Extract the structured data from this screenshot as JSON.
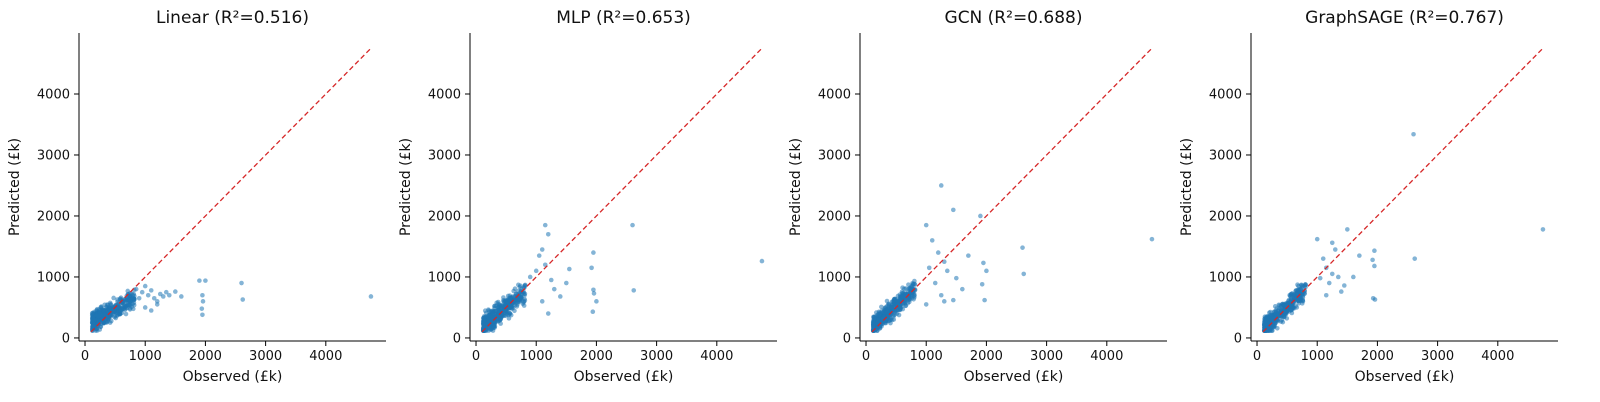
{
  "chart_data": [
    {
      "type": "scatter",
      "title": "Linear (R²=0.516)",
      "xlabel": "Observed (£k)",
      "ylabel": "Predicted (£k)",
      "xlim": [
        -100,
        5000
      ],
      "ylim": [
        -50,
        5000
      ],
      "xticks": [
        0,
        1000,
        2000,
        3000,
        4000
      ],
      "yticks": [
        0,
        1000,
        2000,
        3000,
        4000
      ],
      "xtick_labels": [
        "0",
        "1000",
        "2000",
        "3000",
        "4000"
      ],
      "ytick_labels": [
        "0",
        "1000",
        "2000",
        "3000",
        "4000"
      ],
      "reference_line": [
        100,
        4750
      ],
      "cluster": {
        "slope": 0.55,
        "intercept": 200
      },
      "points": [
        [
          800,
          700
        ],
        [
          850,
          800
        ],
        [
          900,
          650
        ],
        [
          950,
          750
        ],
        [
          1000,
          850
        ],
        [
          1050,
          700
        ],
        [
          1100,
          780
        ],
        [
          1150,
          650
        ],
        [
          1200,
          600
        ],
        [
          1250,
          720
        ],
        [
          1300,
          680
        ],
        [
          1350,
          750
        ],
        [
          1400,
          700
        ],
        [
          1500,
          760
        ],
        [
          1600,
          680
        ],
        [
          1000,
          500
        ],
        [
          1100,
          450
        ],
        [
          1200,
          550
        ],
        [
          1900,
          940
        ],
        [
          2000,
          940
        ],
        [
          1950,
          700
        ],
        [
          1960,
          600
        ],
        [
          1940,
          480
        ],
        [
          1950,
          380
        ],
        [
          2600,
          900
        ],
        [
          2620,
          630
        ],
        [
          4750,
          680
        ]
      ],
      "grid": false
    },
    {
      "type": "scatter",
      "title": "MLP (R²=0.653)",
      "xlabel": "Observed (£k)",
      "ylabel": "Predicted (£k)",
      "xlim": [
        -100,
        5000
      ],
      "ylim": [
        -50,
        5000
      ],
      "xticks": [
        0,
        1000,
        2000,
        3000,
        4000
      ],
      "yticks": [
        0,
        1000,
        2000,
        3000,
        4000
      ],
      "xtick_labels": [
        "0",
        "1000",
        "2000",
        "3000",
        "4000"
      ],
      "ytick_labels": [
        "0",
        "1000",
        "2000",
        "3000",
        "4000"
      ],
      "reference_line": [
        100,
        4750
      ],
      "cluster": {
        "slope": 0.8,
        "intercept": 100
      },
      "points": [
        [
          1150,
          1850
        ],
        [
          1200,
          1700
        ],
        [
          1100,
          1450
        ],
        [
          1050,
          1350
        ],
        [
          1150,
          1200
        ],
        [
          1000,
          1100
        ],
        [
          900,
          1000
        ],
        [
          1250,
          950
        ],
        [
          1300,
          800
        ],
        [
          1550,
          1130
        ],
        [
          1400,
          680
        ],
        [
          1100,
          600
        ],
        [
          1950,
          1400
        ],
        [
          1920,
          1150
        ],
        [
          1950,
          790
        ],
        [
          1960,
          730
        ],
        [
          2000,
          600
        ],
        [
          1940,
          430
        ],
        [
          2600,
          1850
        ],
        [
          2620,
          780
        ],
        [
          4750,
          1260
        ],
        [
          1200,
          400
        ],
        [
          1500,
          900
        ]
      ],
      "grid": false
    },
    {
      "type": "scatter",
      "title": "GCN (R²=0.688)",
      "xlabel": "Observed (£k)",
      "ylabel": "Predicted (£k)",
      "xlim": [
        -100,
        5000
      ],
      "ylim": [
        -50,
        5000
      ],
      "xticks": [
        0,
        1000,
        2000,
        3000,
        4000
      ],
      "yticks": [
        0,
        1000,
        2000,
        3000,
        4000
      ],
      "xtick_labels": [
        "0",
        "1000",
        "2000",
        "3000",
        "4000"
      ],
      "ytick_labels": [
        "0",
        "1000",
        "2000",
        "3000",
        "4000"
      ],
      "reference_line": [
        100,
        4750
      ],
      "cluster": {
        "slope": 0.9,
        "intercept": 80
      },
      "points": [
        [
          1250,
          2500
        ],
        [
          1450,
          2100
        ],
        [
          1900,
          2000
        ],
        [
          1000,
          1850
        ],
        [
          1100,
          1600
        ],
        [
          1200,
          1400
        ],
        [
          1300,
          1250
        ],
        [
          1050,
          1150
        ],
        [
          1350,
          1100
        ],
        [
          1500,
          980
        ],
        [
          1150,
          900
        ],
        [
          1600,
          800
        ],
        [
          1250,
          700
        ],
        [
          1450,
          620
        ],
        [
          1000,
          550
        ],
        [
          1300,
          600
        ],
        [
          1950,
          1230
        ],
        [
          2000,
          1100
        ],
        [
          1930,
          880
        ],
        [
          1970,
          620
        ],
        [
          2600,
          1480
        ],
        [
          2620,
          1050
        ],
        [
          4750,
          1620
        ],
        [
          1700,
          1350
        ]
      ],
      "grid": false
    },
    {
      "type": "scatter",
      "title": "GraphSAGE (R²=0.767)",
      "xlabel": "Observed (£k)",
      "ylabel": "Predicted (£k)",
      "xlim": [
        -100,
        5000
      ],
      "ylim": [
        -50,
        5000
      ],
      "xticks": [
        0,
        1000,
        2000,
        3000,
        4000
      ],
      "yticks": [
        0,
        1000,
        2000,
        3000,
        4000
      ],
      "xtick_labels": [
        "0",
        "1000",
        "2000",
        "3000",
        "4000"
      ],
      "ytick_labels": [
        "0",
        "1000",
        "2000",
        "3000",
        "4000"
      ],
      "reference_line": [
        100,
        4750
      ],
      "cluster": {
        "slope": 0.9,
        "intercept": 50
      },
      "points": [
        [
          2600,
          3340
        ],
        [
          1500,
          1780
        ],
        [
          1250,
          1560
        ],
        [
          1300,
          1450
        ],
        [
          1100,
          1300
        ],
        [
          1000,
          1620
        ],
        [
          1150,
          1150
        ],
        [
          1250,
          1050
        ],
        [
          1350,
          1000
        ],
        [
          1050,
          980
        ],
        [
          1200,
          900
        ],
        [
          1450,
          860
        ],
        [
          1400,
          760
        ],
        [
          1600,
          1000
        ],
        [
          1150,
          700
        ],
        [
          1950,
          1430
        ],
        [
          1920,
          1280
        ],
        [
          1950,
          1180
        ],
        [
          1930,
          650
        ],
        [
          1960,
          630
        ],
        [
          2620,
          1300
        ],
        [
          4750,
          1780
        ],
        [
          1700,
          1350
        ]
      ],
      "grid": false
    }
  ],
  "style": {
    "point_color": "#1f77b4",
    "reference_line_color": "#d62728"
  }
}
